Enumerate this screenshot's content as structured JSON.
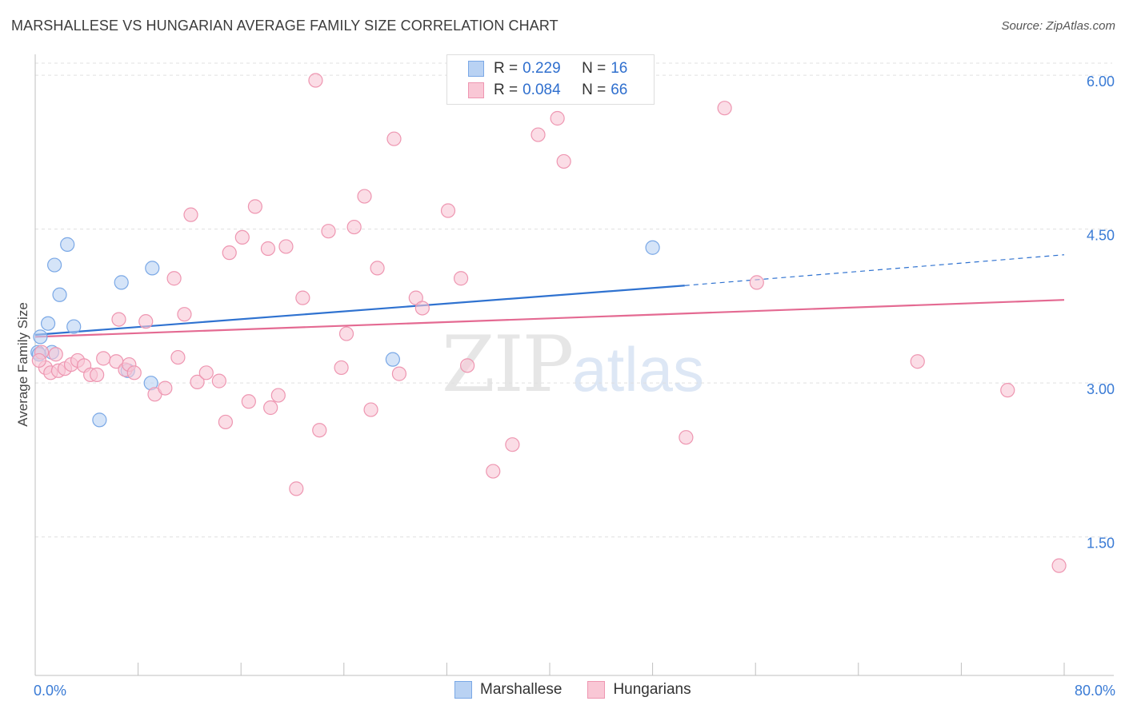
{
  "title": "MARSHALLESE VS HUNGARIAN AVERAGE FAMILY SIZE CORRELATION CHART",
  "source": "Source: ZipAtlas.com",
  "watermark": {
    "zip": "ZIP",
    "atlas": "atlas"
  },
  "legend": {
    "rows": [
      {
        "r_key": "R =",
        "r_val": "0.229",
        "n_key": "N =",
        "n_val": "16",
        "color": "#b9d2f3",
        "stroke": "#7aa8e6"
      },
      {
        "r_key": "R =",
        "r_val": "0.084",
        "n_key": "N =",
        "n_val": "66",
        "color": "#f9c7d5",
        "stroke": "#ee96b1"
      }
    ]
  },
  "bottom_legend": [
    {
      "label": "Marshallese",
      "color": "#b9d2f3",
      "stroke": "#7aa8e6"
    },
    {
      "label": "Hungarians",
      "color": "#f9c7d5",
      "stroke": "#ee96b1"
    }
  ],
  "chart_data": {
    "type": "scatter",
    "ylabel": "Average Family Size",
    "xlim": [
      0,
      80
    ],
    "ylim": [
      0.15,
      6.25
    ],
    "y_ticks": [
      {
        "value": 1.5,
        "label": "1.50"
      },
      {
        "value": 3.0,
        "label": "3.00"
      },
      {
        "value": 4.5,
        "label": "4.50"
      },
      {
        "value": 6.0,
        "label": "6.00"
      }
    ],
    "x_tick_labels": [
      {
        "value": 0,
        "label": "0.0%"
      },
      {
        "value": 80,
        "label": "80.0%"
      }
    ],
    "series": [
      {
        "name": "Marshallese",
        "color": "#b9d2f3",
        "stroke": "#7aa8e6",
        "line_color": "#2f72d0",
        "trend": {
          "x0": 0,
          "y0": 3.47,
          "x1": 50.5,
          "y1": 3.95,
          "dash_to_x": 80,
          "dash_to_y": 4.25
        },
        "points": [
          [
            0.4,
            3.45
          ],
          [
            1.0,
            3.58
          ],
          [
            1.3,
            3.3
          ],
          [
            1.5,
            4.15
          ],
          [
            1.9,
            3.86
          ],
          [
            2.5,
            4.35
          ],
          [
            3.0,
            3.55
          ],
          [
            5.0,
            2.64
          ],
          [
            6.7,
            3.98
          ],
          [
            7.2,
            3.12
          ],
          [
            9.0,
            3.0
          ],
          [
            9.1,
            4.12
          ],
          [
            27.8,
            3.23
          ],
          [
            48.0,
            4.32
          ],
          [
            0.2,
            3.3
          ],
          [
            0.3,
            3.28
          ]
        ]
      },
      {
        "name": "Hungarians",
        "color": "#f9c7d5",
        "stroke": "#ee96b1",
        "line_color": "#e46a92",
        "trend": {
          "x0": 0,
          "y0": 3.45,
          "x1": 80,
          "y1": 3.81
        },
        "points": [
          [
            0.5,
            3.3
          ],
          [
            0.8,
            3.15
          ],
          [
            1.2,
            3.1
          ],
          [
            1.8,
            3.12
          ],
          [
            2.3,
            3.14
          ],
          [
            2.8,
            3.18
          ],
          [
            3.3,
            3.22
          ],
          [
            3.8,
            3.17
          ],
          [
            4.3,
            3.08
          ],
          [
            4.8,
            3.08
          ],
          [
            5.3,
            3.24
          ],
          [
            6.3,
            3.21
          ],
          [
            6.5,
            3.62
          ],
          [
            7.0,
            3.13
          ],
          [
            7.3,
            3.18
          ],
          [
            7.7,
            3.1
          ],
          [
            8.6,
            3.6
          ],
          [
            9.3,
            2.89
          ],
          [
            10.1,
            2.95
          ],
          [
            10.8,
            4.02
          ],
          [
            11.1,
            3.25
          ],
          [
            11.6,
            3.67
          ],
          [
            12.1,
            4.64
          ],
          [
            12.6,
            3.01
          ],
          [
            13.3,
            3.1
          ],
          [
            14.3,
            3.02
          ],
          [
            14.8,
            2.62
          ],
          [
            15.1,
            4.27
          ],
          [
            16.1,
            4.42
          ],
          [
            16.6,
            2.82
          ],
          [
            17.1,
            4.72
          ],
          [
            18.1,
            4.31
          ],
          [
            18.3,
            2.76
          ],
          [
            18.9,
            2.88
          ],
          [
            19.5,
            4.33
          ],
          [
            20.3,
            1.97
          ],
          [
            20.8,
            3.83
          ],
          [
            21.8,
            5.95
          ],
          [
            22.1,
            2.54
          ],
          [
            22.8,
            4.48
          ],
          [
            23.8,
            3.15
          ],
          [
            24.2,
            3.48
          ],
          [
            24.8,
            4.52
          ],
          [
            25.6,
            4.82
          ],
          [
            26.1,
            2.74
          ],
          [
            26.6,
            4.12
          ],
          [
            27.9,
            5.38
          ],
          [
            28.3,
            3.09
          ],
          [
            29.6,
            3.83
          ],
          [
            30.1,
            3.73
          ],
          [
            32.1,
            4.68
          ],
          [
            33.1,
            4.02
          ],
          [
            33.6,
            3.17
          ],
          [
            35.6,
            2.14
          ],
          [
            37.1,
            2.4
          ],
          [
            39.1,
            5.42
          ],
          [
            40.6,
            5.58
          ],
          [
            41.1,
            5.16
          ],
          [
            50.6,
            2.47
          ],
          [
            53.6,
            5.68
          ],
          [
            56.1,
            3.98
          ],
          [
            68.6,
            3.21
          ],
          [
            75.6,
            2.93
          ],
          [
            79.6,
            1.22
          ],
          [
            0.3,
            3.22
          ],
          [
            1.6,
            3.28
          ]
        ]
      }
    ]
  }
}
